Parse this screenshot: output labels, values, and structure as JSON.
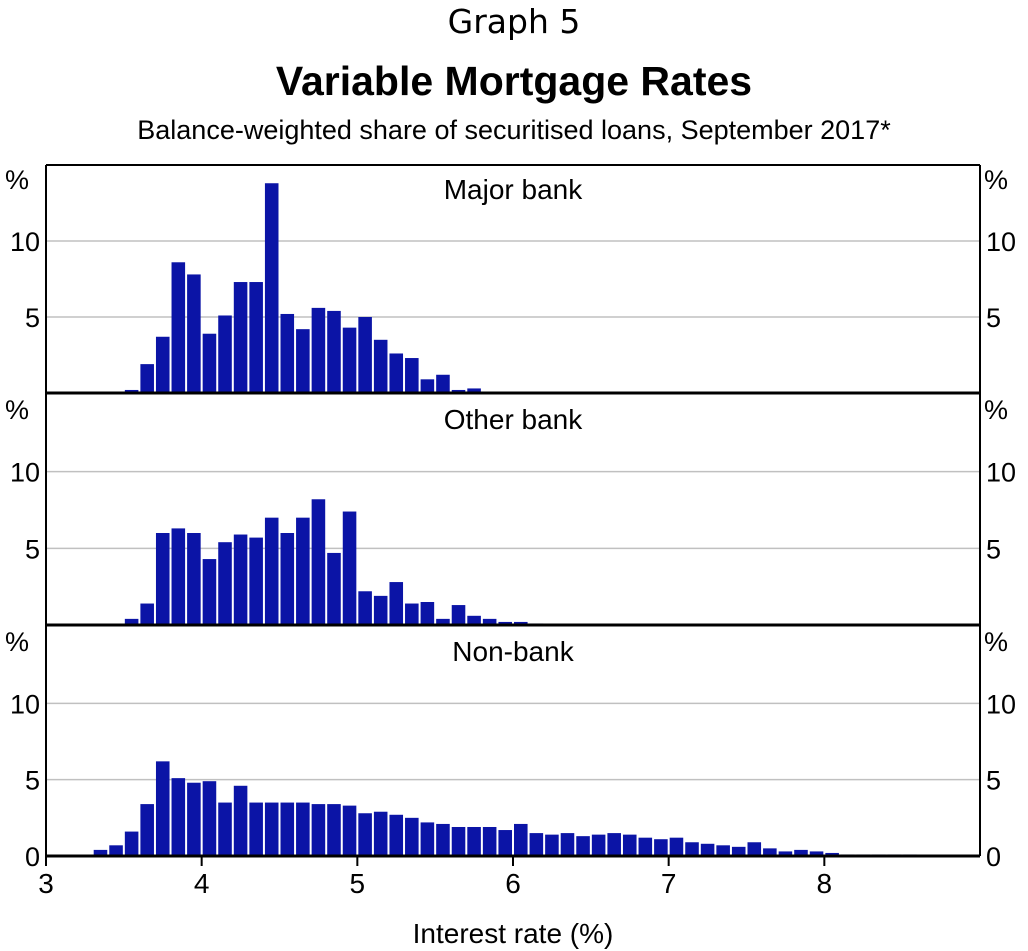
{
  "header": {
    "graph_label": "Graph 5",
    "title": "Variable Mortgage Rates",
    "subtitle": "Balance-weighted share of securitised loans, September 2017*"
  },
  "colors": {
    "bar": "#0b14a6",
    "grid": "#c0c0c0",
    "axis": "#000000"
  },
  "chart_data": {
    "type": "bar",
    "title": "Variable Mortgage Rates",
    "subtitle": "Balance-weighted share of securitised loans, September 2017*",
    "xlabel": "Interest rate (%)",
    "ylabel": "%",
    "xlim": [
      3,
      9
    ],
    "x_ticks": [
      "3",
      "4",
      "5",
      "6",
      "7",
      "8"
    ],
    "ylim": [
      0,
      15
    ],
    "y_ticks": [
      "5",
      "10"
    ],
    "y_ticks_bottom": [
      "0",
      "5",
      "10"
    ],
    "unit": "%",
    "grid": true,
    "bin_width": 0.1,
    "bin_centers": [
      3.35,
      3.45,
      3.55,
      3.65,
      3.75,
      3.85,
      3.95,
      4.05,
      4.15,
      4.25,
      4.35,
      4.45,
      4.55,
      4.65,
      4.75,
      4.85,
      4.95,
      5.05,
      5.15,
      5.25,
      5.35,
      5.45,
      5.55,
      5.65,
      5.75,
      5.85,
      5.95,
      6.05,
      6.15,
      6.25,
      6.35,
      6.45,
      6.55,
      6.65,
      6.75,
      6.85,
      6.95,
      7.05,
      7.15,
      7.25,
      7.35,
      7.45,
      7.55,
      7.65,
      7.75,
      7.85,
      7.95,
      8.05,
      8.15,
      8.25,
      8.35,
      8.45,
      8.55
    ],
    "panels": [
      {
        "name": "Major bank",
        "values": [
          0,
          0,
          0.2,
          1.9,
          3.7,
          8.6,
          7.8,
          3.9,
          5.1,
          7.3,
          7.3,
          13.8,
          5.2,
          4.2,
          5.6,
          5.4,
          4.3,
          5.0,
          3.5,
          2.6,
          2.3,
          0.9,
          1.2,
          0.2,
          0.3,
          0,
          0,
          0,
          0,
          0,
          0,
          0,
          0,
          0,
          0,
          0,
          0,
          0,
          0,
          0,
          0,
          0,
          0,
          0,
          0,
          0,
          0,
          0,
          0,
          0,
          0,
          0,
          0
        ]
      },
      {
        "name": "Other bank",
        "values": [
          0,
          0,
          0.4,
          1.4,
          6.0,
          6.3,
          6.0,
          4.3,
          5.4,
          5.9,
          5.7,
          7.0,
          6.0,
          7.0,
          8.2,
          4.7,
          7.4,
          2.2,
          1.9,
          2.8,
          1.4,
          1.5,
          0.4,
          1.3,
          0.6,
          0.4,
          0.2,
          0.2,
          0.1,
          0,
          0,
          0,
          0,
          0,
          0,
          0,
          0,
          0,
          0,
          0,
          0,
          0,
          0,
          0,
          0,
          0,
          0,
          0,
          0,
          0,
          0,
          0,
          0
        ]
      },
      {
        "name": "Non-bank",
        "values": [
          0.4,
          0.7,
          1.6,
          3.4,
          6.2,
          5.1,
          4.8,
          4.9,
          3.5,
          4.6,
          3.5,
          3.5,
          3.5,
          3.5,
          3.4,
          3.4,
          3.3,
          2.8,
          2.9,
          2.7,
          2.5,
          2.2,
          2.1,
          1.9,
          1.9,
          1.9,
          1.7,
          2.1,
          1.5,
          1.4,
          1.5,
          1.3,
          1.4,
          1.5,
          1.4,
          1.2,
          1.1,
          1.2,
          0.9,
          0.8,
          0.7,
          0.6,
          0.9,
          0.5,
          0.3,
          0.4,
          0.3,
          0.2,
          0.1,
          0.1,
          0.1,
          0.1,
          0.1
        ]
      }
    ]
  }
}
